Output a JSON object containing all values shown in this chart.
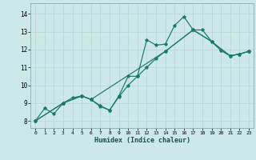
{
  "background_color": "#cce8e8",
  "grid_color": "#c0d8d8",
  "line_color": "#1a7a6a",
  "xlabel": "Humidex (Indice chaleur)",
  "xlim": [
    -0.5,
    23.5
  ],
  "ylim": [
    7.6,
    14.6
  ],
  "yticks": [
    8,
    9,
    10,
    11,
    12,
    13,
    14
  ],
  "xticks": [
    0,
    1,
    2,
    3,
    4,
    5,
    6,
    7,
    8,
    9,
    10,
    11,
    12,
    13,
    14,
    15,
    16,
    17,
    18,
    19,
    20,
    21,
    22,
    23
  ],
  "line1_x": [
    0,
    1,
    2,
    3,
    4,
    5,
    6,
    7,
    8,
    9,
    10,
    11,
    12,
    13,
    14,
    15,
    16,
    17,
    18,
    19,
    20,
    21,
    22,
    23
  ],
  "line1_y": [
    8.0,
    8.7,
    8.4,
    9.0,
    9.3,
    9.4,
    9.2,
    8.85,
    8.6,
    9.4,
    10.5,
    10.5,
    12.55,
    12.25,
    12.3,
    13.35,
    13.85,
    13.1,
    13.1,
    12.45,
    11.95,
    11.65,
    11.75,
    11.9
  ],
  "line2_x": [
    0,
    3,
    5,
    6,
    7,
    8,
    9,
    10,
    11,
    12,
    13,
    14,
    17,
    19,
    21,
    22,
    23
  ],
  "line2_y": [
    8.0,
    9.0,
    9.4,
    9.2,
    8.8,
    8.6,
    9.35,
    10.0,
    10.5,
    11.0,
    11.5,
    11.9,
    13.1,
    12.45,
    11.65,
    11.75,
    11.9
  ],
  "line3_x": [
    0,
    3,
    5,
    6,
    14,
    17,
    19,
    20,
    21,
    22,
    23
  ],
  "line3_y": [
    8.0,
    9.0,
    9.4,
    9.2,
    11.9,
    13.1,
    12.45,
    11.95,
    11.65,
    11.75,
    11.9
  ]
}
